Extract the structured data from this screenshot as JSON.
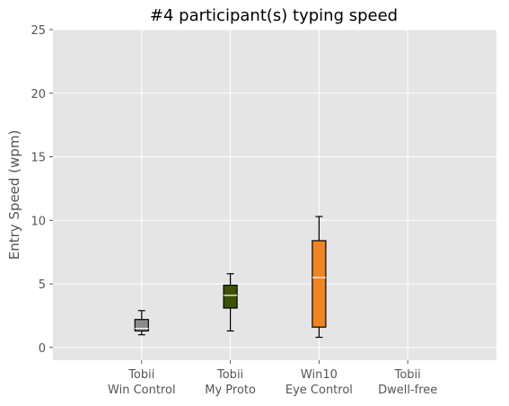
{
  "chart_data": {
    "type": "boxplot",
    "title": "#4 participant(s) typing speed",
    "xlabel": "",
    "ylabel": "Entry Speed (wpm)",
    "ylim": [
      -1,
      25
    ],
    "yticks": [
      0,
      5,
      10,
      15,
      20,
      25
    ],
    "grid": true,
    "categories": [
      [
        "Tobii",
        "Win Control"
      ],
      [
        "Tobii",
        "My Proto"
      ],
      [
        "Win10",
        "Eye Control"
      ],
      [
        "Tobii",
        "Dwell-free"
      ]
    ],
    "boxes": [
      {
        "whisker_low": 1.0,
        "q1": 1.3,
        "median": 1.5,
        "q3": 2.2,
        "whisker_high": 2.9,
        "color": "#8c8c8c"
      },
      {
        "whisker_low": 1.3,
        "q1": 3.1,
        "median": 4.1,
        "q3": 4.9,
        "whisker_high": 5.8,
        "color": "#3d5200"
      },
      {
        "whisker_low": 0.8,
        "q1": 1.6,
        "median": 5.5,
        "q3": 8.4,
        "whisker_high": 10.3,
        "color": "#f08420"
      },
      null
    ]
  }
}
